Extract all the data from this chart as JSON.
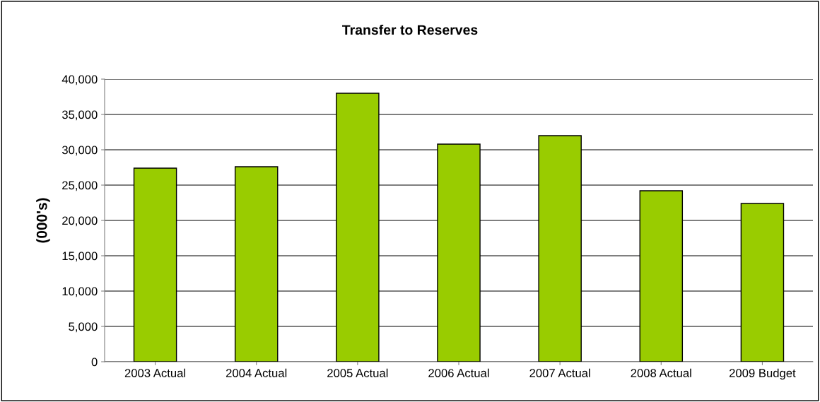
{
  "chart_data": {
    "type": "bar",
    "title": "Transfer to Reserves",
    "ylabel": "(000's)",
    "categories": [
      "2003 Actual",
      "2004 Actual",
      "2005 Actual",
      "2006 Actual",
      "2007 Actual",
      "2008 Actual",
      "2009 Budget"
    ],
    "values": [
      27400,
      27600,
      38000,
      30800,
      32000,
      24200,
      22400
    ],
    "color": "#99cc00",
    "ylim": [
      0,
      40000
    ],
    "yticks": [
      {
        "value": 0,
        "label": "0"
      },
      {
        "value": 5000,
        "label": "5,000"
      },
      {
        "value": 10000,
        "label": "10,000"
      },
      {
        "value": 15000,
        "label": "15,000"
      },
      {
        "value": 20000,
        "label": "20,000"
      },
      {
        "value": 25000,
        "label": "25,000"
      },
      {
        "value": 30000,
        "label": "30,000"
      },
      {
        "value": 35000,
        "label": "35,000"
      },
      {
        "value": 40000,
        "label": "40,000"
      }
    ],
    "grid": "y"
  }
}
